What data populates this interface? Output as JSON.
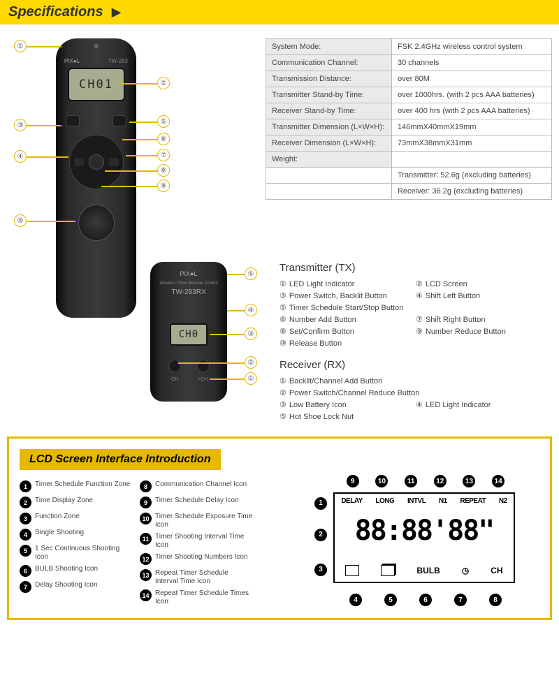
{
  "header": {
    "title": "Specifications"
  },
  "lcd_text_tx": "CH01",
  "lcd_text_rx": "CH0",
  "device": {
    "brand": "PIX●L",
    "tx_model": "TW-283",
    "rx_model": "TW-283RX",
    "rx_sub": "Wireless Timer Remote Control"
  },
  "spec_table": {
    "rows": [
      [
        "System Mode:",
        "FSK 2.4GHz wireless control system"
      ],
      [
        "Communication Channel:",
        "30 channels"
      ],
      [
        "Transmission Distance:",
        "over 80M"
      ],
      [
        "Transmitter Stand-by Time:",
        "over 1000hrs.  (with 2 pcs AAA batteries)"
      ],
      [
        "Receiver Stand-by Time:",
        "over 400 hrs (with 2 pcs AAA batteries)"
      ],
      [
        "Transmitter Dimension (L×W×H):",
        "146mmX40mmX19mm"
      ],
      [
        "Receiver Dimension (L×W×H):",
        "73mmX38mmX31mm"
      ],
      [
        "Weight:",
        ""
      ],
      [
        "",
        "Transmitter: 52.6g (excluding batteries)"
      ],
      [
        "",
        "Receiver: 36.2g (excluding batteries)"
      ]
    ]
  },
  "transmitter_legend": {
    "title": "Transmitter (TX)",
    "items": [
      "LED Light Indicator",
      "LCD Screen",
      "Power Switch, Backlit Button",
      "Shift Left Button",
      "Timer Schedule Start/Stop Button",
      "",
      "Number Add Button",
      "Shift Right Button",
      "Set/Confirm Button",
      "Number Reduce Button",
      "Release Button",
      ""
    ]
  },
  "receiver_legend": {
    "title": "Receiver (RX)",
    "items": [
      "Backlit/Channel Add Button",
      "",
      "Power Switch/Channel Reduce Button",
      "",
      "Low Battery Icon",
      "LED Light Indicator",
      "Hot Shoe Lock Nut",
      ""
    ]
  },
  "lcd_section": {
    "title": "LCD Screen Interface Introduction",
    "col1": [
      "Timer Schedule Function Zone",
      "Time Display Zone",
      "Function Zone",
      "Single Shooting",
      "1 Sec Continuous Shooting Icon",
      "BULB Shooting Icon",
      "Delay Shooting Icon"
    ],
    "col2": [
      "Communication Channel Icon",
      "Timer Schedule Delay Icon",
      "Timer Schedule Exposure Time Icon",
      "Timer Shooting Interval Time Icon",
      "Timer Shooting Numbers Icon",
      "Repeat Timer Schedule Interval Time Icon",
      "Repeat Timer Schedule Times Icon"
    ],
    "display": {
      "top_labels": [
        "DELAY",
        "LONG",
        "INTVL",
        "N1",
        "REPEAT",
        "N2"
      ],
      "digits": "88:88'88\"",
      "bot_labels": [
        "BULB",
        "CH"
      ]
    }
  },
  "rx_ch_labels": {
    "minus": "-CH",
    "plus": "+CH"
  },
  "colors": {
    "accent": "#e6b800",
    "header_bg": "#ffd800"
  }
}
